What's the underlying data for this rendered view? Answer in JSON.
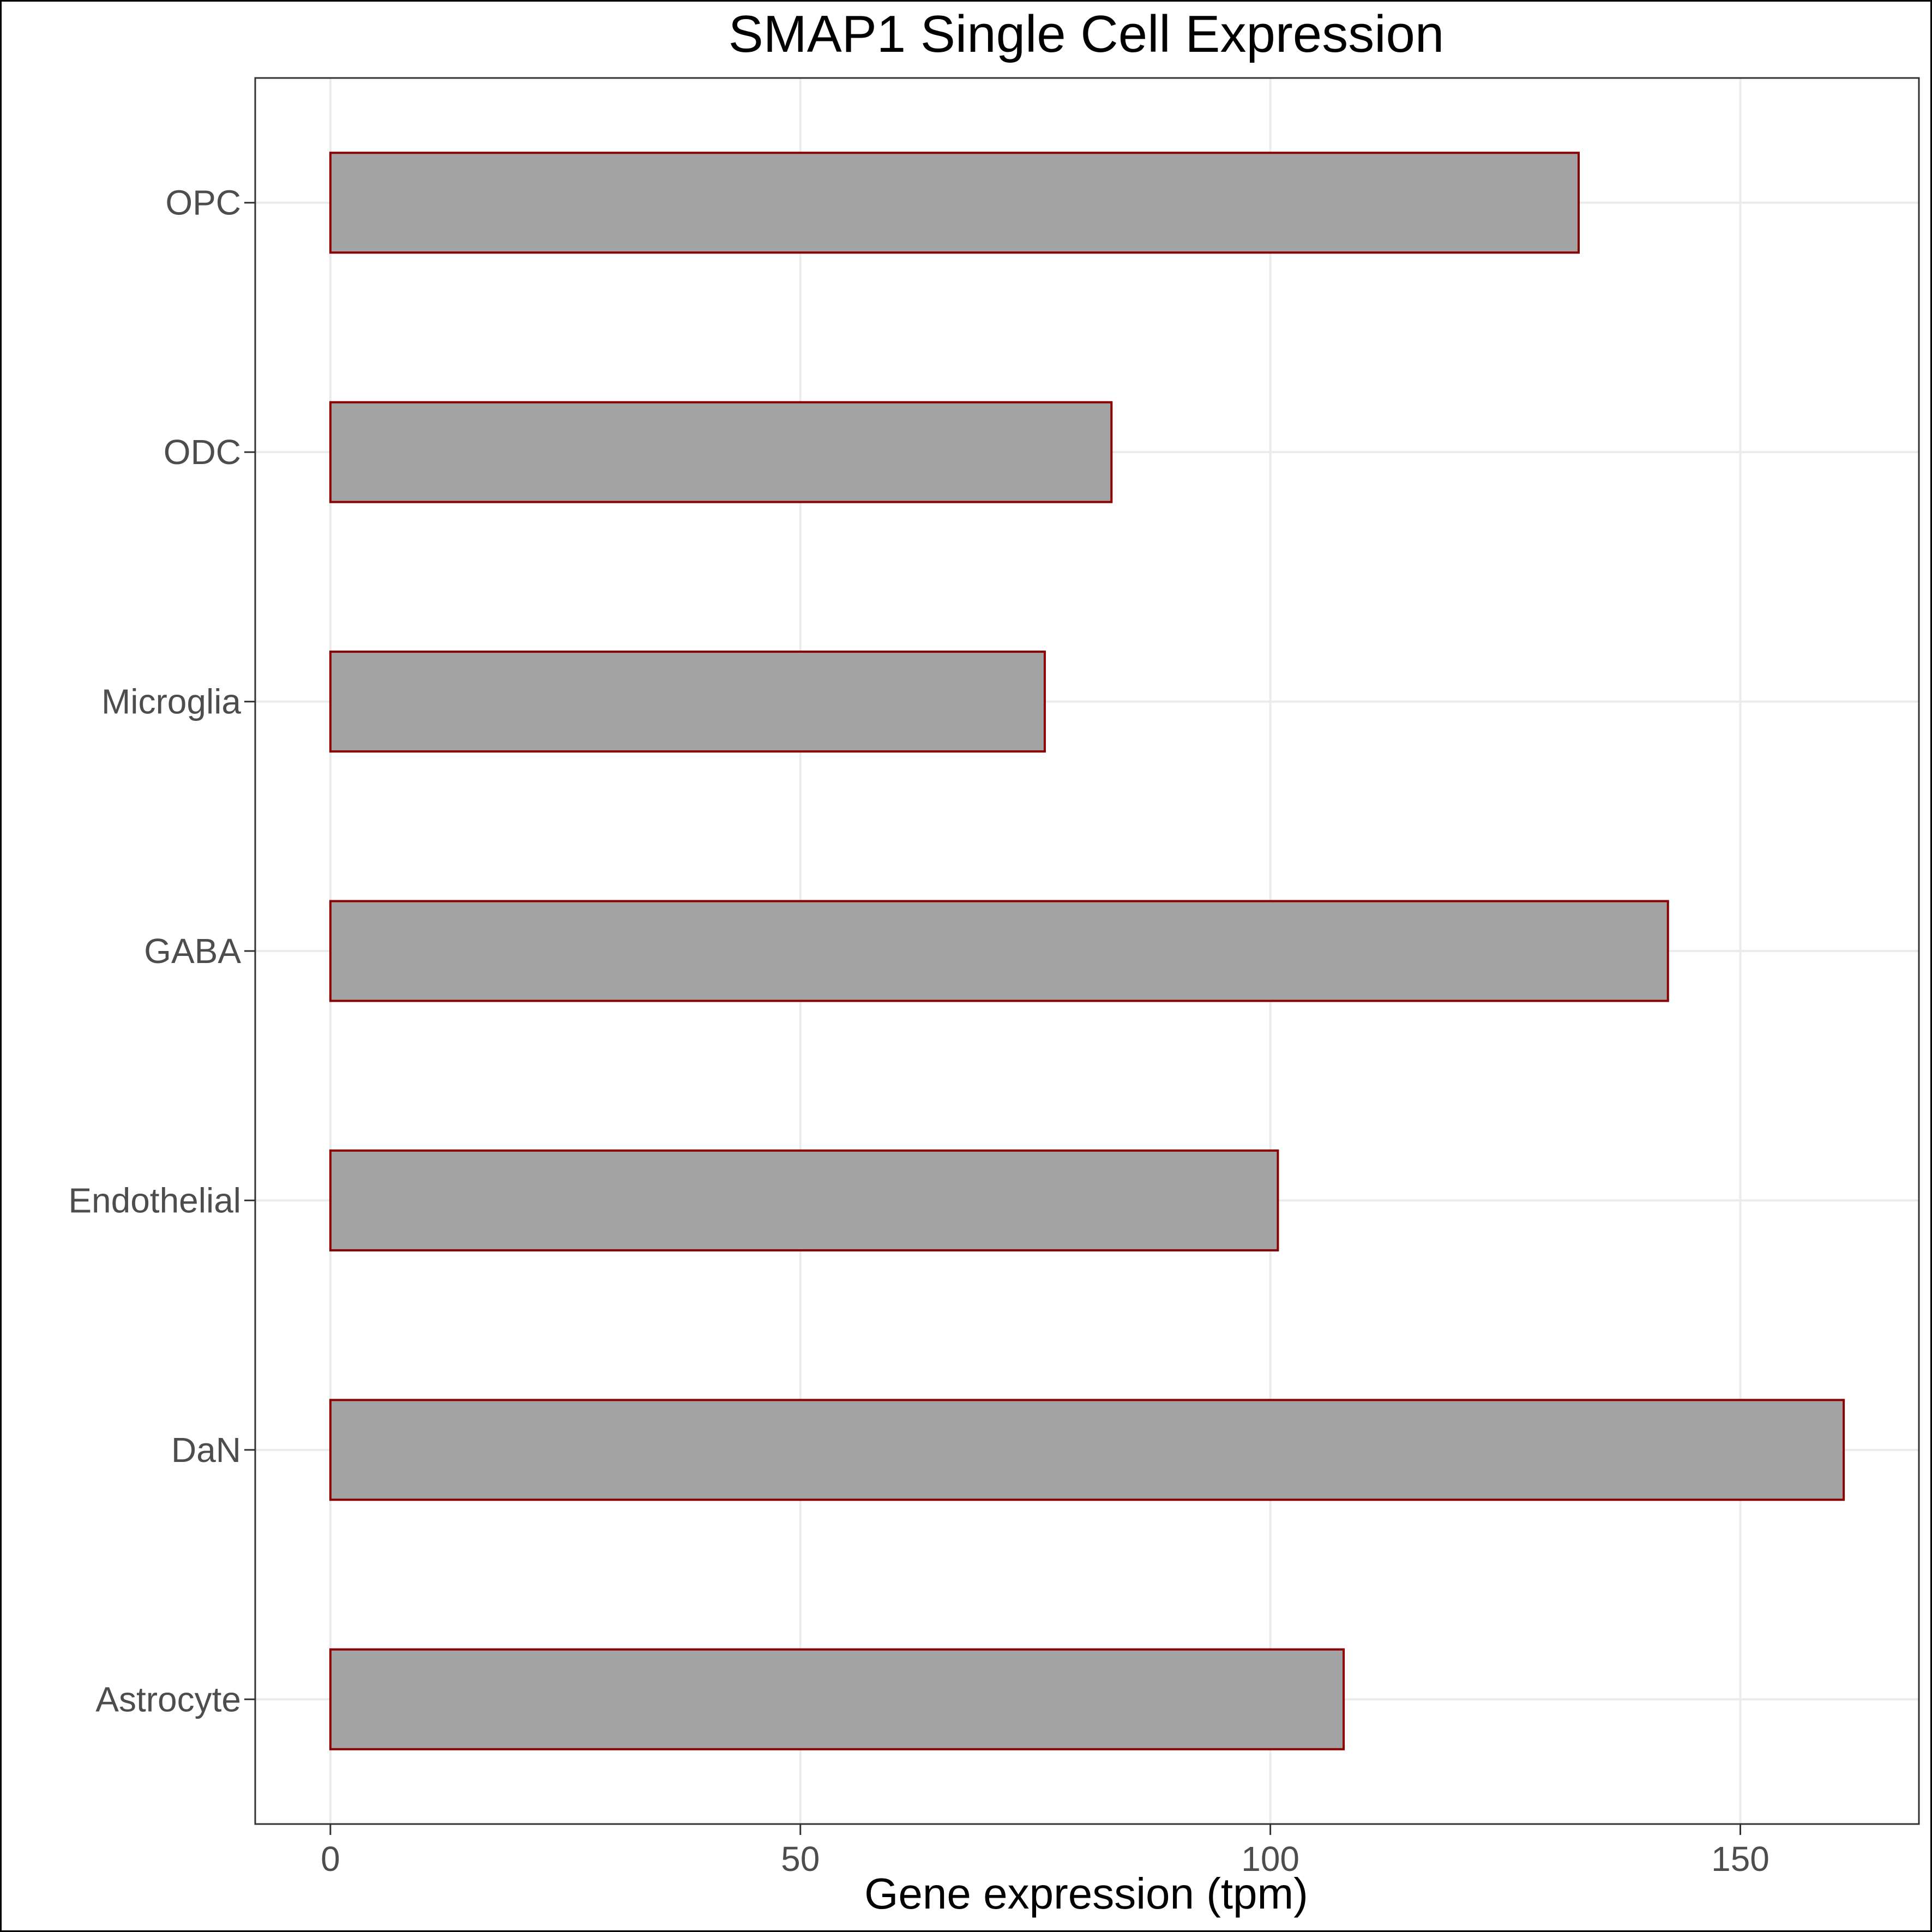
{
  "chart_data": {
    "type": "bar",
    "orientation": "horizontal",
    "title": "SMAP1 Single Cell Expression",
    "xlabel": "Gene expression (tpm)",
    "ylabel": "",
    "categories": [
      "Astrocyte",
      "DaN",
      "Endothelial",
      "GABA",
      "Microglia",
      "ODC",
      "OPC"
    ],
    "values": [
      107.8,
      161.0,
      100.8,
      142.3,
      76.0,
      83.1,
      132.8
    ],
    "xlim": [
      -8,
      169
    ],
    "xticks": [
      0,
      50,
      100,
      150
    ],
    "xtick_labels": [
      "0",
      "50",
      "100",
      "150"
    ],
    "grid": true,
    "legend": "none",
    "colors": {
      "bar_fill": "#a3a3a3",
      "bar_outline": "#8b0000"
    }
  }
}
